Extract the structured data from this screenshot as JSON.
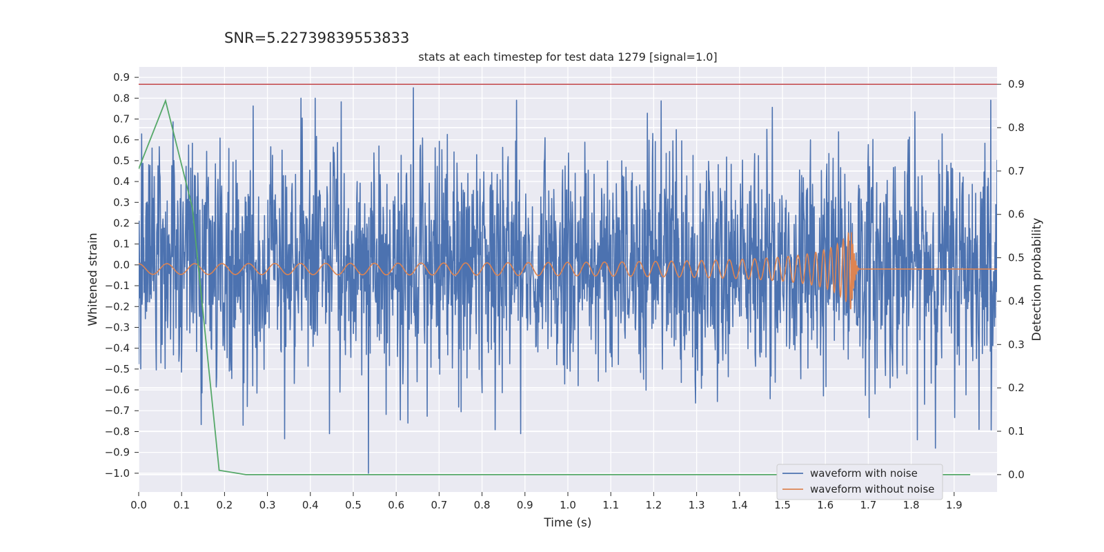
{
  "figure": {
    "suptitle": "SNR=5.22739839553833",
    "title": "stats at each timestep for test data 1279 [signal=1.0]"
  },
  "chart_data": {
    "type": "line",
    "title": "stats at each timestep for test data 1279 [signal=1.0]",
    "xlabel": "Time (s)",
    "ylabel": "Whitened strain",
    "y2label": "Detection probability",
    "xlim": [
      0.0,
      2.0
    ],
    "ylim": [
      -1.09,
      0.95
    ],
    "y2lim": [
      -0.04,
      0.94
    ],
    "grid": true,
    "legend_position": "lower right",
    "x_ticks": [
      "0.0",
      "0.1",
      "0.2",
      "0.3",
      "0.4",
      "0.5",
      "0.6",
      "0.7",
      "0.8",
      "0.9",
      "1.0",
      "1.1",
      "1.2",
      "1.3",
      "1.4",
      "1.5",
      "1.6",
      "1.7",
      "1.8",
      "1.9"
    ],
    "y_ticks": [
      "0.9",
      "0.8",
      "0.7",
      "0.6",
      "0.5",
      "0.4",
      "0.3",
      "0.2",
      "0.1",
      "0.0",
      "−0.1",
      "−0.2",
      "−0.3",
      "−0.4",
      "−0.5",
      "−0.6",
      "−0.7",
      "−0.8",
      "−0.9",
      "−1.0"
    ],
    "y2_ticks": [
      "0.9",
      "0.8",
      "0.7",
      "0.6",
      "0.5",
      "0.4",
      "0.3",
      "0.2",
      "0.1",
      "0.0"
    ],
    "series": [
      {
        "name": "waveform with noise",
        "axis": "left",
        "color": "#4c72b0",
        "t_range": [
          0.0,
          2.0
        ],
        "samples": 2048,
        "amplitude_std": 0.28,
        "y_min_observed": -1.0,
        "y_max_observed": 0.85
      },
      {
        "name": "waveform without noise",
        "axis": "left",
        "color": "#dd8452",
        "description": "chirp",
        "t_range": [
          0.0,
          2.0
        ],
        "merger_time": 1.66,
        "baseline": -0.02,
        "early_amplitude": 0.02,
        "peak_amplitude": 0.2
      },
      {
        "axis": "right",
        "color": "#55a868",
        "x": [
          0.0,
          0.0625,
          0.125,
          0.1875,
          0.25,
          0.3125,
          0.375,
          0.4375,
          0.5,
          0.5625,
          0.625,
          0.6875,
          0.75,
          0.8125,
          0.875,
          0.9375,
          1.0,
          1.0625,
          1.125,
          1.1875,
          1.25,
          1.3125,
          1.375,
          1.4375,
          1.5,
          1.5625,
          1.625,
          1.6875,
          1.75,
          1.8125,
          1.875,
          1.9375
        ],
        "y": [
          0.705,
          0.862,
          0.615,
          0.01,
          0.0,
          0.0,
          0.0,
          0.0,
          0.0,
          0.0,
          0.0,
          0.0,
          0.0,
          0.0,
          0.0,
          0.0,
          0.0,
          0.0,
          0.0,
          0.0,
          0.0,
          0.0,
          0.0,
          0.0,
          0.0,
          0.0,
          0.0,
          0.0,
          0.0,
          0.0,
          0.0,
          0.0
        ]
      },
      {
        "axis": "right",
        "color": "#c44e52",
        "type": "hline",
        "y": 0.9
      }
    ],
    "legend": [
      "waveform with noise",
      "waveform without noise"
    ]
  }
}
